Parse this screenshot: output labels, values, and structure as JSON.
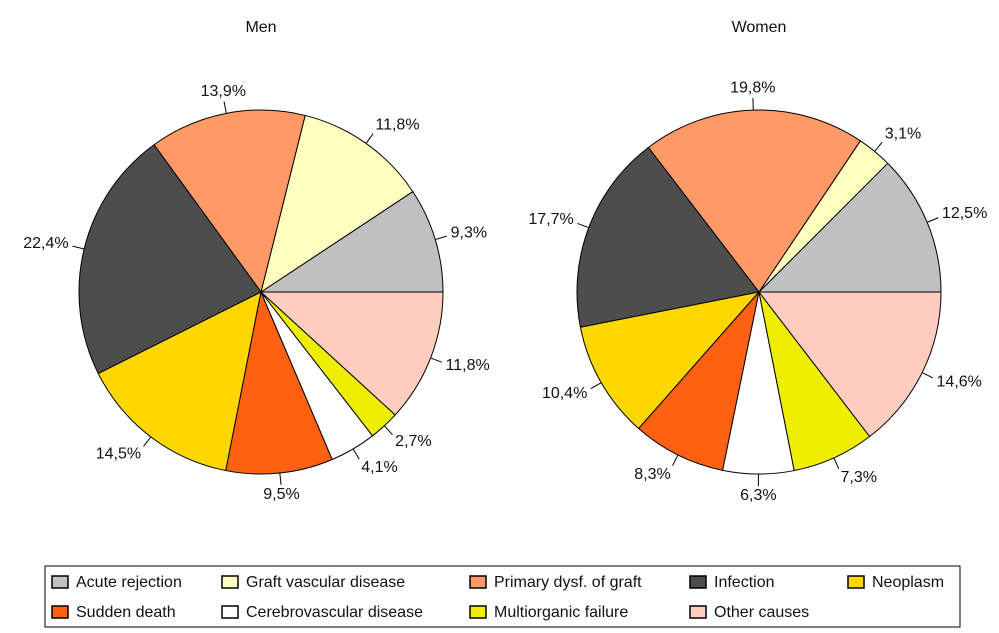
{
  "chart_data": [
    {
      "type": "pie",
      "title": "Men",
      "categories": [
        "Acute rejection",
        "Graft vascular disease",
        "Primary dysf. of graft",
        "Infection",
        "Neoplasm",
        "Sudden death",
        "Cerebrovascular disease",
        "Multiorganic failure",
        "Other causes"
      ],
      "values": [
        9.3,
        11.8,
        13.9,
        22.4,
        14.5,
        9.5,
        4.1,
        2.7,
        11.8
      ],
      "value_labels": [
        "9,3%",
        "11,8%",
        "13,9%",
        "22,4%",
        "14,5%",
        "9,5%",
        "4,1%",
        "2,7%",
        "11,8%"
      ],
      "colors": [
        "#c0c0c0",
        "#ffffc0",
        "#ff9966",
        "#4d4d4d",
        "#ffd700",
        "#ff6011",
        "#ffffff",
        "#eeee00",
        "#ffcdc0"
      ]
    },
    {
      "type": "pie",
      "title": "Women",
      "categories": [
        "Acute rejection",
        "Graft vascular disease",
        "Primary dysf. of graft",
        "Infection",
        "Neoplasm",
        "Sudden death",
        "Cerebrovascular disease",
        "Multiorganic failure",
        "Other causes"
      ],
      "values": [
        12.5,
        3.1,
        19.8,
        17.7,
        10.4,
        8.3,
        6.3,
        7.3,
        14.6
      ],
      "value_labels": [
        "12,5%",
        "3,1%",
        "19,8%",
        "17,7%",
        "10,4%",
        "8,3%",
        "6,3%",
        "7,3%",
        "14,6%"
      ],
      "colors": [
        "#c0c0c0",
        "#ffffc0",
        "#ff9966",
        "#4d4d4d",
        "#ffd700",
        "#ff6011",
        "#ffffff",
        "#eeee00",
        "#ffcdc0"
      ]
    }
  ]
}
